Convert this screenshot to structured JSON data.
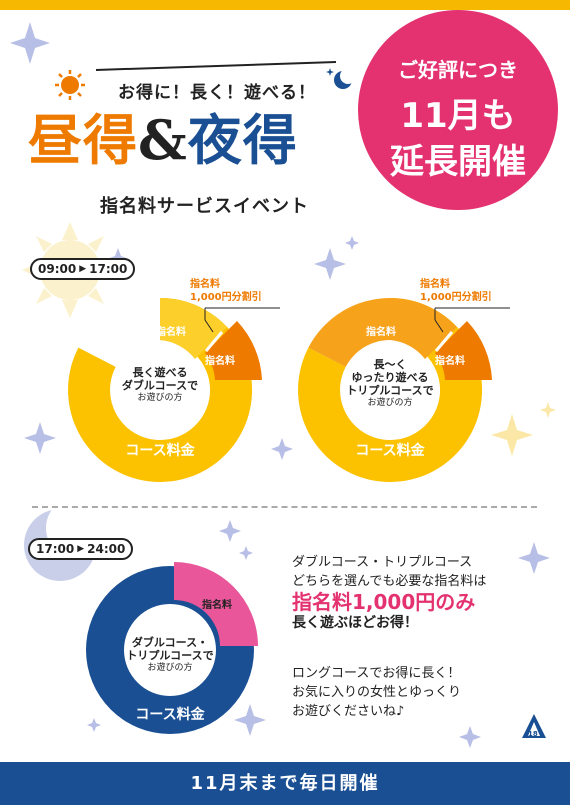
{
  "header": {
    "catchphrase": "お得に！長く！遊べる！",
    "title_day": "昼得",
    "title_amp": "&",
    "title_night": "夜得",
    "subtitle": "指名料サービスイベント"
  },
  "badge": {
    "line1": "ご好評につき",
    "line2": "11月も",
    "line3": "延長開催"
  },
  "day_section": {
    "time_start": "09:00",
    "time_end": "17:00",
    "charts": [
      {
        "discount_label_1": "指名料",
        "discount_label_2": "1,000円分割引",
        "segment_nomination": "指名料",
        "segment_nomination_discount": "指名料",
        "center_lines": [
          "長く遊べる",
          "ダブルコースで",
          "お遊びの方"
        ],
        "course_label": "コース料金"
      },
      {
        "discount_label_1": "指名料",
        "discount_label_2": "1,000円分割引",
        "segment_nomination": "指名料",
        "segment_nomination_discount": "指名料",
        "center_lines": [
          "長～く",
          "ゆったり遊べる",
          "トリプルコースで",
          "お遊びの方"
        ],
        "course_label": "コース料金"
      }
    ]
  },
  "night_section": {
    "time_start": "17:00",
    "time_end": "24:00",
    "chart": {
      "segment_nomination": "指名料",
      "center_lines": [
        "ダブルコース・",
        "トリプルコースで",
        "お遊びの方"
      ],
      "course_label": "コース料金"
    },
    "info_lines": [
      "ダブルコース・トリプルコース",
      "どちらを選んでも必要な指名料は"
    ],
    "info_highlight": "指名料1,000円のみ",
    "info_bold": "長く遊ぶほどお得！",
    "info2_lines": [
      "ロングコースでお得に長く！",
      "お気に入りの女性とゆっくり",
      "お遊びくださいね♪"
    ]
  },
  "footer": {
    "text": "11月末まで毎日開催",
    "logo_text": "18"
  },
  "colors": {
    "day": "#ee7a00",
    "night": "#1a4f93",
    "pink": "#e3326f",
    "yellow": "#f6b800",
    "light_orange": "#f7a21b"
  }
}
